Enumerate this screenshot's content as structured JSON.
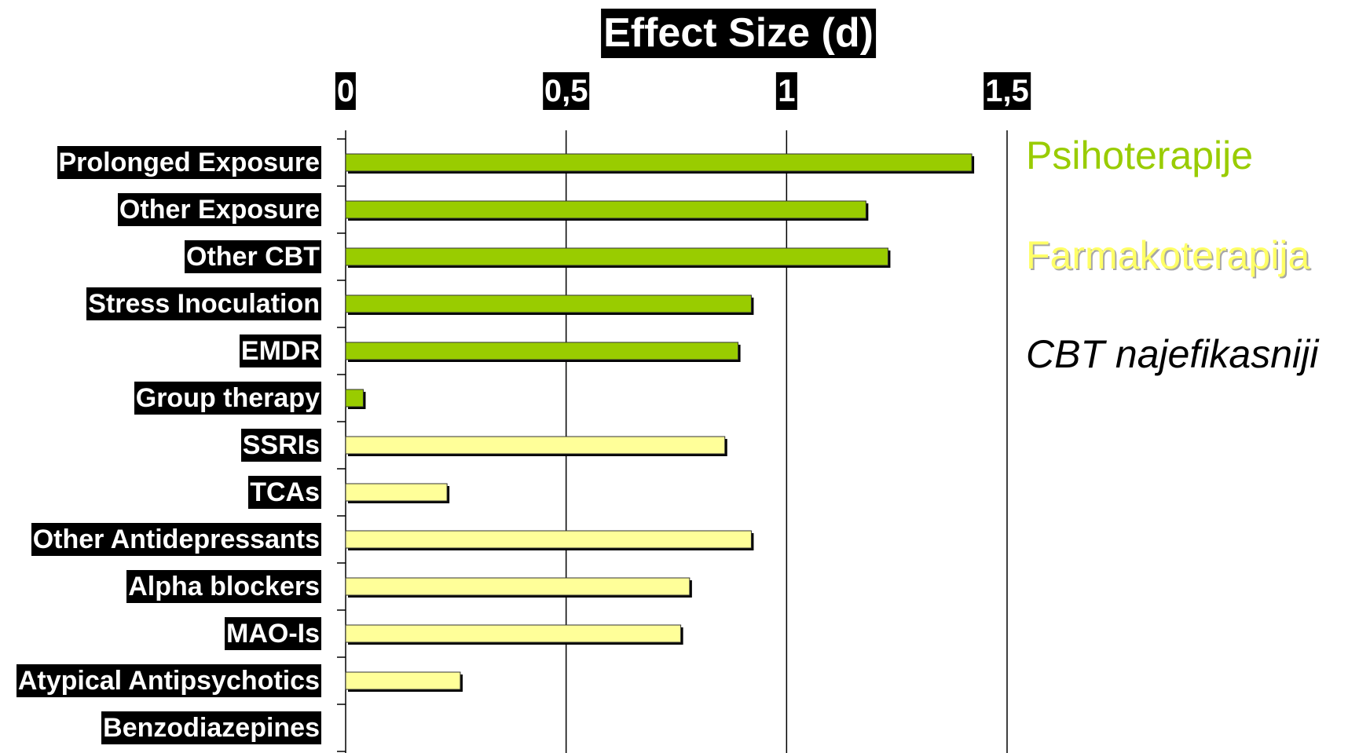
{
  "chart_data": {
    "type": "bar",
    "orientation": "horizontal",
    "title": "Effect Size (d)",
    "x_axis_position": "top",
    "xlim": [
      0,
      1.5
    ],
    "xticks": [
      0,
      0.5,
      1,
      1.5
    ],
    "xtick_labels": [
      "0",
      "0,5",
      "1",
      "1,5"
    ],
    "grid": true,
    "legend_position": "right",
    "categories": [
      "Prolonged Exposure",
      "Other Exposure",
      "Other CBT",
      "Stress Inoculation",
      "EMDR",
      "Group therapy",
      "SSRIs",
      "TCAs",
      "Other Antidepressants",
      "Alpha blockers",
      "MAO-Is",
      "Atypical Antipsychotics",
      "Benzodiazepines"
    ],
    "series": [
      {
        "name": "Psihoterapije",
        "color": "#99cc00",
        "values": [
          1.42,
          1.18,
          1.23,
          0.92,
          0.89,
          0.04,
          null,
          null,
          null,
          null,
          null,
          null,
          null
        ]
      },
      {
        "name": "Farmakoterapija",
        "color": "#ffff99",
        "values": [
          null,
          null,
          null,
          null,
          null,
          null,
          0.86,
          0.23,
          0.92,
          0.78,
          0.76,
          0.26,
          0
        ]
      }
    ],
    "annotations": [
      "CBT najefikasniji"
    ]
  }
}
